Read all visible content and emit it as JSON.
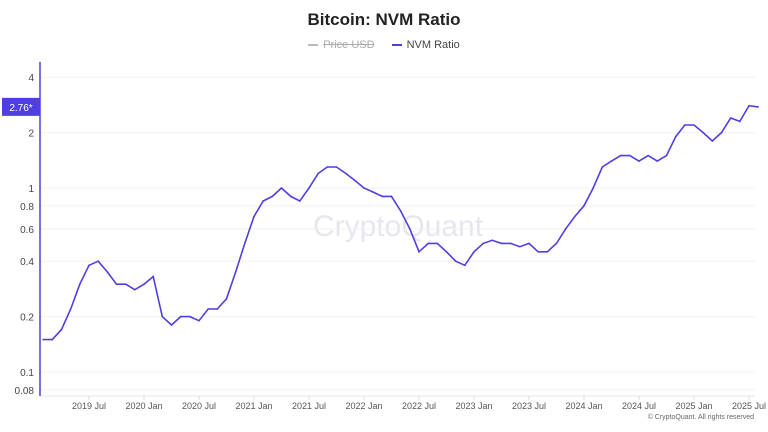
{
  "chart_data": {
    "type": "line",
    "title": "Bitcoin: NVM Ratio",
    "legend": [
      {
        "name": "Price USD",
        "color": "#bbbbbb",
        "hidden": true
      },
      {
        "name": "NVM Ratio",
        "color": "#4f3fe0",
        "hidden": false
      }
    ],
    "y_scale": "log",
    "ylim": [
      0.075,
      5
    ],
    "y_ticks": [
      4,
      2,
      1,
      0.8,
      0.6,
      0.4,
      0.2,
      0.1,
      0.08
    ],
    "y_tick_labels": [
      "4",
      "2",
      "1",
      "0.8",
      "0.6",
      "0.4",
      "0.2",
      "0.1",
      "0.08"
    ],
    "x_ticks": [
      "2019-07",
      "2020-01",
      "2020-07",
      "2021-01",
      "2021-07",
      "2022-01",
      "2022-07",
      "2023-01",
      "2023-07",
      "2024-01",
      "2024-07",
      "2025-01",
      "2025-07"
    ],
    "x_tick_labels": [
      "2019 Jul",
      "2020 Jan",
      "2020 Jul",
      "2021 Jan",
      "2021 Jul",
      "2022 Jan",
      "2022 Jul",
      "2023 Jan",
      "2023 Jul",
      "2024 Jan",
      "2024 Jul",
      "2025 Jan",
      "2025 Jul"
    ],
    "xlim": [
      "2019-02",
      "2025-08"
    ],
    "grid": true,
    "legend_position": "top-center",
    "current_value_label": "2.76*",
    "watermark": "CryptoQuant",
    "series": [
      {
        "name": "NVM Ratio",
        "x": [
          "2019-02",
          "2019-03",
          "2019-04",
          "2019-05",
          "2019-06",
          "2019-07",
          "2019-08",
          "2019-09",
          "2019-10",
          "2019-11",
          "2019-12",
          "2020-01",
          "2020-02",
          "2020-03",
          "2020-04",
          "2020-05",
          "2020-06",
          "2020-07",
          "2020-08",
          "2020-09",
          "2020-10",
          "2020-11",
          "2020-12",
          "2021-01",
          "2021-02",
          "2021-03",
          "2021-04",
          "2021-05",
          "2021-06",
          "2021-07",
          "2021-08",
          "2021-09",
          "2021-10",
          "2021-11",
          "2021-12",
          "2022-01",
          "2022-02",
          "2022-03",
          "2022-04",
          "2022-05",
          "2022-06",
          "2022-07",
          "2022-08",
          "2022-09",
          "2022-10",
          "2022-11",
          "2022-12",
          "2023-01",
          "2023-02",
          "2023-03",
          "2023-04",
          "2023-05",
          "2023-06",
          "2023-07",
          "2023-08",
          "2023-09",
          "2023-10",
          "2023-11",
          "2023-12",
          "2024-01",
          "2024-02",
          "2024-03",
          "2024-04",
          "2024-05",
          "2024-06",
          "2024-07",
          "2024-08",
          "2024-09",
          "2024-10",
          "2024-11",
          "2024-12",
          "2025-01",
          "2025-02",
          "2025-03",
          "2025-04",
          "2025-05",
          "2025-06",
          "2025-07",
          "2025-08"
        ],
        "values": [
          0.15,
          0.15,
          0.17,
          0.22,
          0.3,
          0.38,
          0.4,
          0.35,
          0.3,
          0.3,
          0.28,
          0.3,
          0.33,
          0.2,
          0.18,
          0.2,
          0.2,
          0.19,
          0.22,
          0.22,
          0.25,
          0.35,
          0.5,
          0.7,
          0.85,
          0.9,
          1.0,
          0.9,
          0.85,
          1.0,
          1.2,
          1.3,
          1.3,
          1.2,
          1.1,
          1.0,
          0.95,
          0.9,
          0.9,
          0.75,
          0.6,
          0.45,
          0.5,
          0.5,
          0.45,
          0.4,
          0.38,
          0.45,
          0.5,
          0.52,
          0.5,
          0.5,
          0.48,
          0.5,
          0.45,
          0.45,
          0.5,
          0.6,
          0.7,
          0.8,
          1.0,
          1.3,
          1.4,
          1.5,
          1.5,
          1.4,
          1.5,
          1.4,
          1.5,
          1.9,
          2.2,
          2.2,
          2.0,
          1.8,
          2.0,
          2.4,
          2.3,
          2.8,
          2.76
        ]
      }
    ]
  },
  "footer": {
    "copyright": "© CryptoQuant. All rights reserved"
  }
}
